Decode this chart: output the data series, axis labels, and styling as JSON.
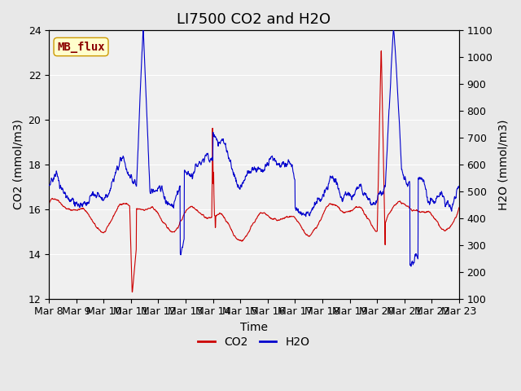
{
  "title": "LI7500 CO2 and H2O",
  "xlabel": "Time",
  "ylabel_left": "CO2 (mmol/m3)",
  "ylabel_right": "H2O (mmol/m3)",
  "xlim_days": [
    0,
    15
  ],
  "ylim_left": [
    12,
    24
  ],
  "ylim_right": [
    100,
    1100
  ],
  "yticks_left": [
    12,
    14,
    16,
    18,
    20,
    22,
    24
  ],
  "yticks_right": [
    100,
    200,
    300,
    400,
    500,
    600,
    700,
    800,
    900,
    1000,
    1100
  ],
  "xtick_labels": [
    "Mar 8",
    "Mar 9",
    "Mar 10",
    "Mar 11",
    "Mar 12",
    "Mar 13",
    "Mar 14",
    "Mar 15",
    "Mar 16",
    "Mar 17",
    "Mar 18",
    "Mar 19",
    "Mar 20",
    "Mar 21",
    "Mar 22",
    "Mar 23"
  ],
  "co2_color": "#cc0000",
  "h2o_color": "#0000cc",
  "bg_color": "#e8e8e8",
  "plot_bg_color": "#f0f0f0",
  "grid_color": "#ffffff",
  "annotation_text": "MB_flux",
  "annotation_bg": "#ffffcc",
  "annotation_border": "#cc9900",
  "legend_co2": "CO2",
  "legend_h2o": "H2O",
  "title_fontsize": 13,
  "axis_fontsize": 10,
  "tick_fontsize": 9
}
